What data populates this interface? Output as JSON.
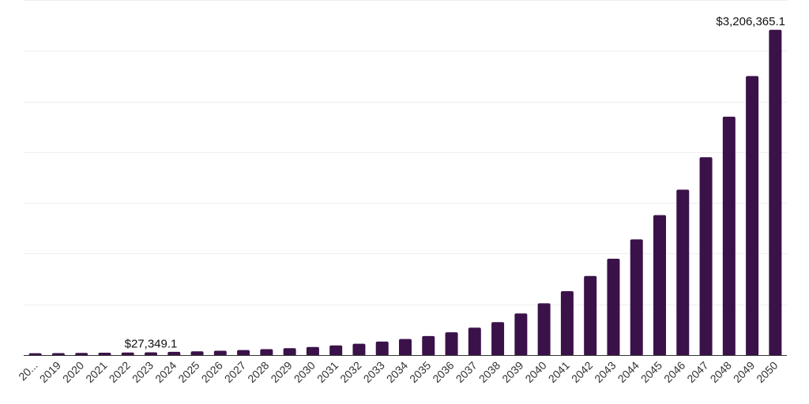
{
  "chart_data": {
    "type": "bar",
    "categories": [
      "20...",
      "2019",
      "2020",
      "2021",
      "2022",
      "2023",
      "2024",
      "2025",
      "2026",
      "2027",
      "2028",
      "2029",
      "2030",
      "2031",
      "2032",
      "2033",
      "2034",
      "2035",
      "2036",
      "2037",
      "2038",
      "2039",
      "2040",
      "2041",
      "2042",
      "2043",
      "2044",
      "2045",
      "2046",
      "2047",
      "2048",
      "2049",
      "2050"
    ],
    "values": [
      18000,
      19500,
      21000,
      23000,
      25000,
      27349.1,
      32000,
      37000,
      43000,
      50000,
      58000,
      68000,
      80000,
      95000,
      112000,
      133000,
      158000,
      188000,
      225000,
      270000,
      325000,
      410000,
      510000,
      630000,
      780000,
      950000,
      1140000,
      1380000,
      1630000,
      1950000,
      2350000,
      2750000,
      3206365.1
    ],
    "ylim": [
      0,
      3500000
    ],
    "grid": true,
    "gridline_values": [
      0,
      500000,
      1000000,
      1500000,
      2000000,
      2500000,
      3000000,
      3500000
    ],
    "bar_color": "#3a1249",
    "data_labels": [
      {
        "index": 5,
        "text": "$27,349.1"
      },
      {
        "index": 32,
        "text": "$3,206,365.1"
      }
    ]
  }
}
